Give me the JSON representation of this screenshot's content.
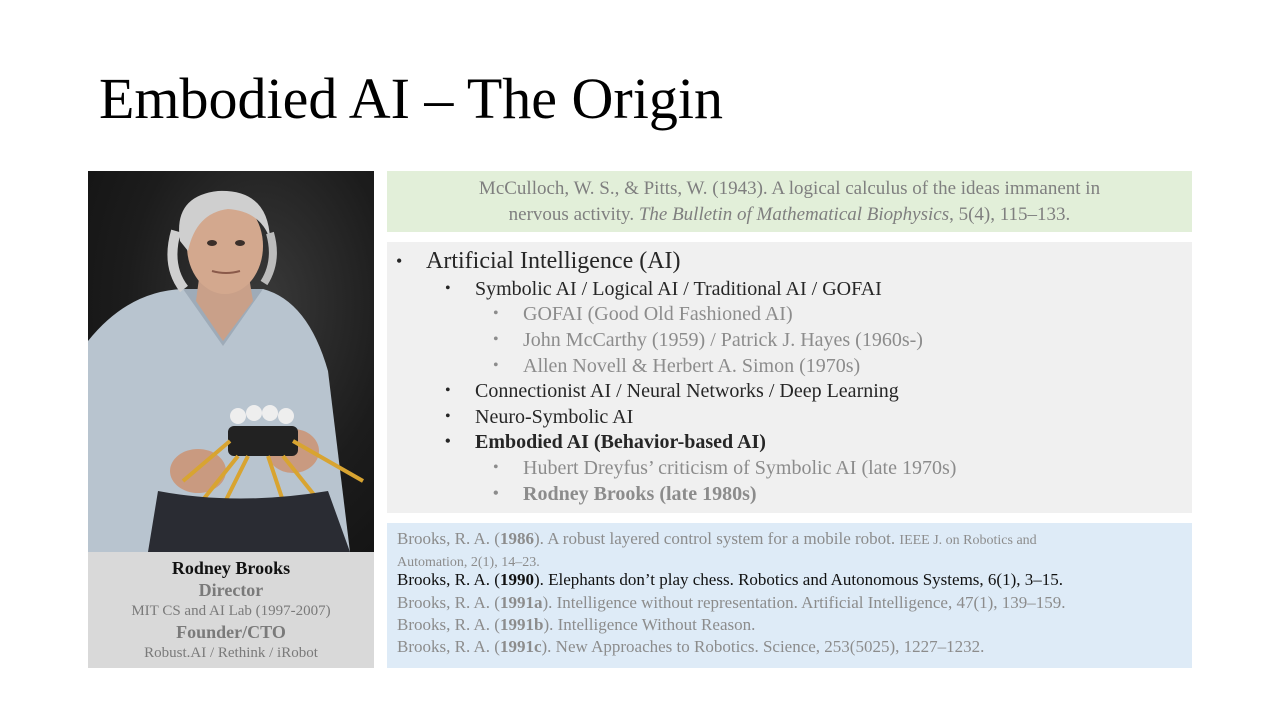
{
  "slide": {
    "title": "Embodied AI – The Origin"
  },
  "caption": {
    "name": "Rodney Brooks",
    "role1": "Director",
    "org1": "MIT CS and AI Lab (1997-2007)",
    "role2": "Founder/CTO",
    "org2": "Robust.AI / Rethink / iRobot"
  },
  "citation": {
    "line1": "McCulloch, W. S., & Pitts, W. (1943). A logical calculus of the ideas immanent in",
    "line2_plain": "nervous activity. ",
    "line2_journal": "The Bulletin of Mathematical Biophysics",
    "line2_rest": ", 5(4), 115–133."
  },
  "bullets": {
    "bullet": "•",
    "items": [
      {
        "text": "Artificial Intelligence (AI)"
      },
      {
        "text": "Symbolic AI / Logical AI / Traditional AI / GOFAI"
      },
      {
        "text": "GOFAI (Good Old Fashioned AI)"
      },
      {
        "text": "John McCarthy (1959) / Patrick J. Hayes (1960s-)"
      },
      {
        "text": "Allen Novell & Herbert A. Simon (1970s)"
      },
      {
        "text": "Connectionist AI / Neural Networks / Deep Learning"
      },
      {
        "text": "Neuro-Symbolic AI"
      },
      {
        "text": "Embodied AI (Behavior-based AI)"
      },
      {
        "text": "Hubert Dreyfus’ criticism of Symbolic AI (late 1970s)"
      },
      {
        "text": "Rodney Brooks (late 1980s)"
      }
    ]
  },
  "references": [
    {
      "prefix": "Brooks, R. A. (",
      "year": "1986",
      "mid": "). A robust layered control system for a mobile robot. ",
      "tail": "IEEE J. on Robotics and",
      "tail2": "Automation, 2(1), 14–23."
    },
    {
      "prefix": "Brooks, R. A. (",
      "year": "1990",
      "mid": "). Elephants don’t play chess. Robotics and Autonomous Systems, 6(1), 3–15."
    },
    {
      "prefix": "Brooks, R. A. (",
      "year": "1991a",
      "mid": "). Intelligence without representation. Artificial Intelligence, 47(1), 139–159."
    },
    {
      "prefix": "Brooks, R. A. (",
      "year": "1991b",
      "mid": "). Intelligence Without Reason."
    },
    {
      "prefix": "Brooks, R. A. (",
      "year": "1991c",
      "mid": "). New Approaches to Robotics. Science, 253(5025), 1227–1232."
    }
  ]
}
